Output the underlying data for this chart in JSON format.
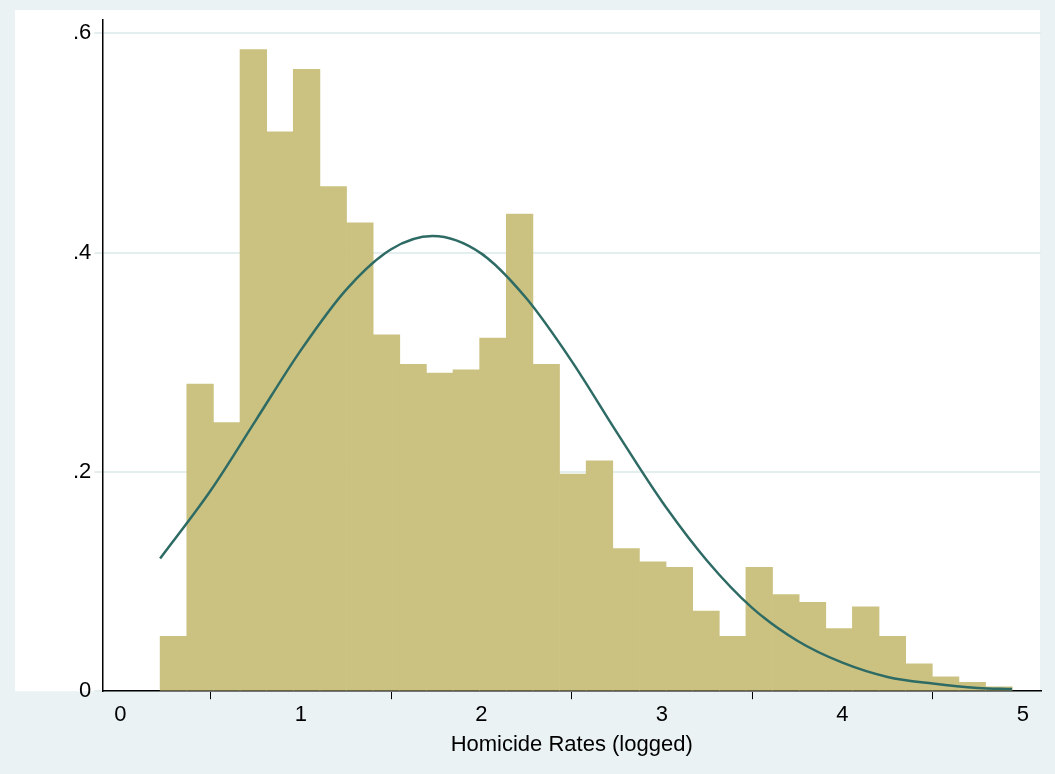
{
  "chart_data": {
    "type": "histogram",
    "xlabel": "Homicide Rates (logged)",
    "bins": [
      0.22,
      0.368,
      0.515,
      0.663,
      0.81,
      0.958,
      1.105,
      1.253,
      1.4,
      1.548,
      1.695,
      1.843,
      1.99,
      2.138,
      2.285,
      2.433,
      2.58,
      2.728,
      2.875,
      3.023,
      3.17,
      3.318,
      3.465,
      3.613,
      3.76,
      3.908,
      4.055,
      4.203,
      4.35,
      4.498,
      4.645,
      4.793,
      4.94
    ],
    "values": [
      0.05,
      0.28,
      0.245,
      0.585,
      0.51,
      0.567,
      0.46,
      0.427,
      0.325,
      0.298,
      0.29,
      0.293,
      0.322,
      0.435,
      0.298,
      0.198,
      0.21,
      0.13,
      0.118,
      0.113,
      0.073,
      0.05,
      0.113,
      0.088,
      0.081,
      0.057,
      0.077,
      0.05,
      0.025,
      0.013,
      0.008,
      0.004
    ],
    "color": "#cbc281",
    "series": [
      {
        "type": "line",
        "color": "#2e6b65",
        "x": [
          0.22,
          0.5,
          0.75,
          1,
          1.25,
          1.5,
          1.73,
          2,
          2.25,
          2.5,
          2.75,
          3,
          3.25,
          3.5,
          3.75,
          4,
          4.25,
          4.5,
          4.75,
          4.94
        ],
        "values": [
          0.121,
          0.183,
          0.247,
          0.311,
          0.366,
          0.403,
          0.415,
          0.399,
          0.358,
          0.301,
          0.236,
          0.173,
          0.119,
          0.076,
          0.046,
          0.026,
          0.013,
          0.007,
          0.003,
          0.002
        ]
      }
    ],
    "xlim": [
      -0.1,
      5.1
    ],
    "xticks": [
      0,
      1,
      2,
      3,
      4,
      5
    ],
    "ylim": [
      0,
      0.612
    ],
    "yticks": [
      0,
      {
        "value": 0.2,
        "label": ".2"
      },
      {
        "value": 0.4,
        "label": ".4"
      },
      {
        "value": 0.6,
        "label": ".6"
      }
    ],
    "grid": "y",
    "legend": false,
    "marker": "none"
  }
}
